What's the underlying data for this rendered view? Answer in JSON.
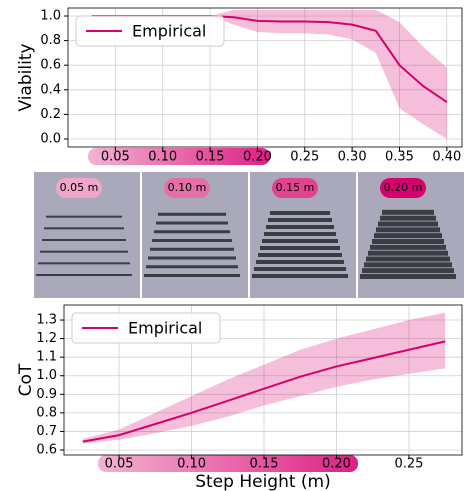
{
  "chart_data": [
    {
      "type": "line",
      "ylabel": "Viability",
      "x": [
        0.025,
        0.05,
        0.075,
        0.1,
        0.125,
        0.15,
        0.175,
        0.2,
        0.225,
        0.25,
        0.275,
        0.3,
        0.325,
        0.35,
        0.375,
        0.4
      ],
      "series": [
        {
          "name": "Empirical",
          "color": "#d6006f",
          "values": [
            1.0,
            1.0,
            1.0,
            1.0,
            1.0,
            1.0,
            0.99,
            0.96,
            0.955,
            0.955,
            0.95,
            0.93,
            0.88,
            0.6,
            0.43,
            0.3
          ],
          "lower": [
            1.0,
            1.0,
            1.0,
            1.0,
            1.0,
            1.0,
            0.93,
            0.87,
            0.86,
            0.86,
            0.85,
            0.81,
            0.7,
            0.25,
            0.12,
            0.0
          ],
          "upper": [
            1.0,
            1.0,
            1.0,
            1.0,
            1.0,
            1.0,
            1.05,
            1.05,
            1.05,
            1.05,
            1.05,
            1.05,
            1.05,
            0.95,
            0.75,
            0.58
          ]
        }
      ],
      "xlim": [
        0,
        0.416
      ],
      "ylim": [
        -0.065,
        1.065
      ],
      "xticks": [
        0.05,
        {
          "value": 0.1,
          "label": "0.10"
        },
        0.15,
        {
          "value": 0.2,
          "label": "0.20"
        },
        0.25,
        {
          "value": 0.3,
          "label": "0.30"
        },
        0.35,
        {
          "value": 0.4,
          "label": "0.40"
        }
      ],
      "yticks": [
        {
          "value": 0,
          "label": "0.0"
        },
        0.2,
        0.4,
        0.6,
        0.8,
        {
          "value": 1,
          "label": "1.0"
        }
      ],
      "grid": true,
      "legend": "upper left"
    },
    {
      "type": "line",
      "ylabel": "CoT",
      "xlabel": "Step Height (m)",
      "x": [
        0.025,
        0.05,
        0.075,
        0.1,
        0.125,
        0.15,
        0.175,
        0.2,
        0.225,
        0.25,
        0.275
      ],
      "series": [
        {
          "name": "Empirical",
          "color": "#d6006f",
          "values": [
            0.645,
            0.68,
            0.74,
            0.8,
            0.865,
            0.93,
            0.995,
            1.05,
            1.095,
            1.14,
            1.185
          ],
          "lower": [
            0.635,
            0.655,
            0.69,
            0.73,
            0.78,
            0.84,
            0.89,
            0.94,
            0.98,
            1.01,
            1.04
          ],
          "upper": [
            0.66,
            0.71,
            0.8,
            0.89,
            0.98,
            1.06,
            1.14,
            1.2,
            1.25,
            1.3,
            1.34
          ]
        }
      ],
      "xlim": [
        0.012,
        0.2866
      ],
      "ylim": [
        0.573,
        1.381
      ],
      "xticks": [
        0.05,
        {
          "value": 0.1,
          "label": "0.10"
        },
        0.15,
        {
          "value": 0.2,
          "label": "0.20"
        },
        0.25
      ],
      "yticks": [
        0.6,
        0.7,
        0.8,
        0.9,
        {
          "value": 1,
          "label": "1.0"
        },
        1.1,
        1.2,
        1.3
      ],
      "grid": true,
      "legend": "upper left"
    }
  ],
  "images": [
    {
      "label": "0.05 m"
    },
    {
      "label": "0.10 m"
    },
    {
      "label": "0.15 m"
    },
    {
      "label": "0.20 m"
    }
  ]
}
